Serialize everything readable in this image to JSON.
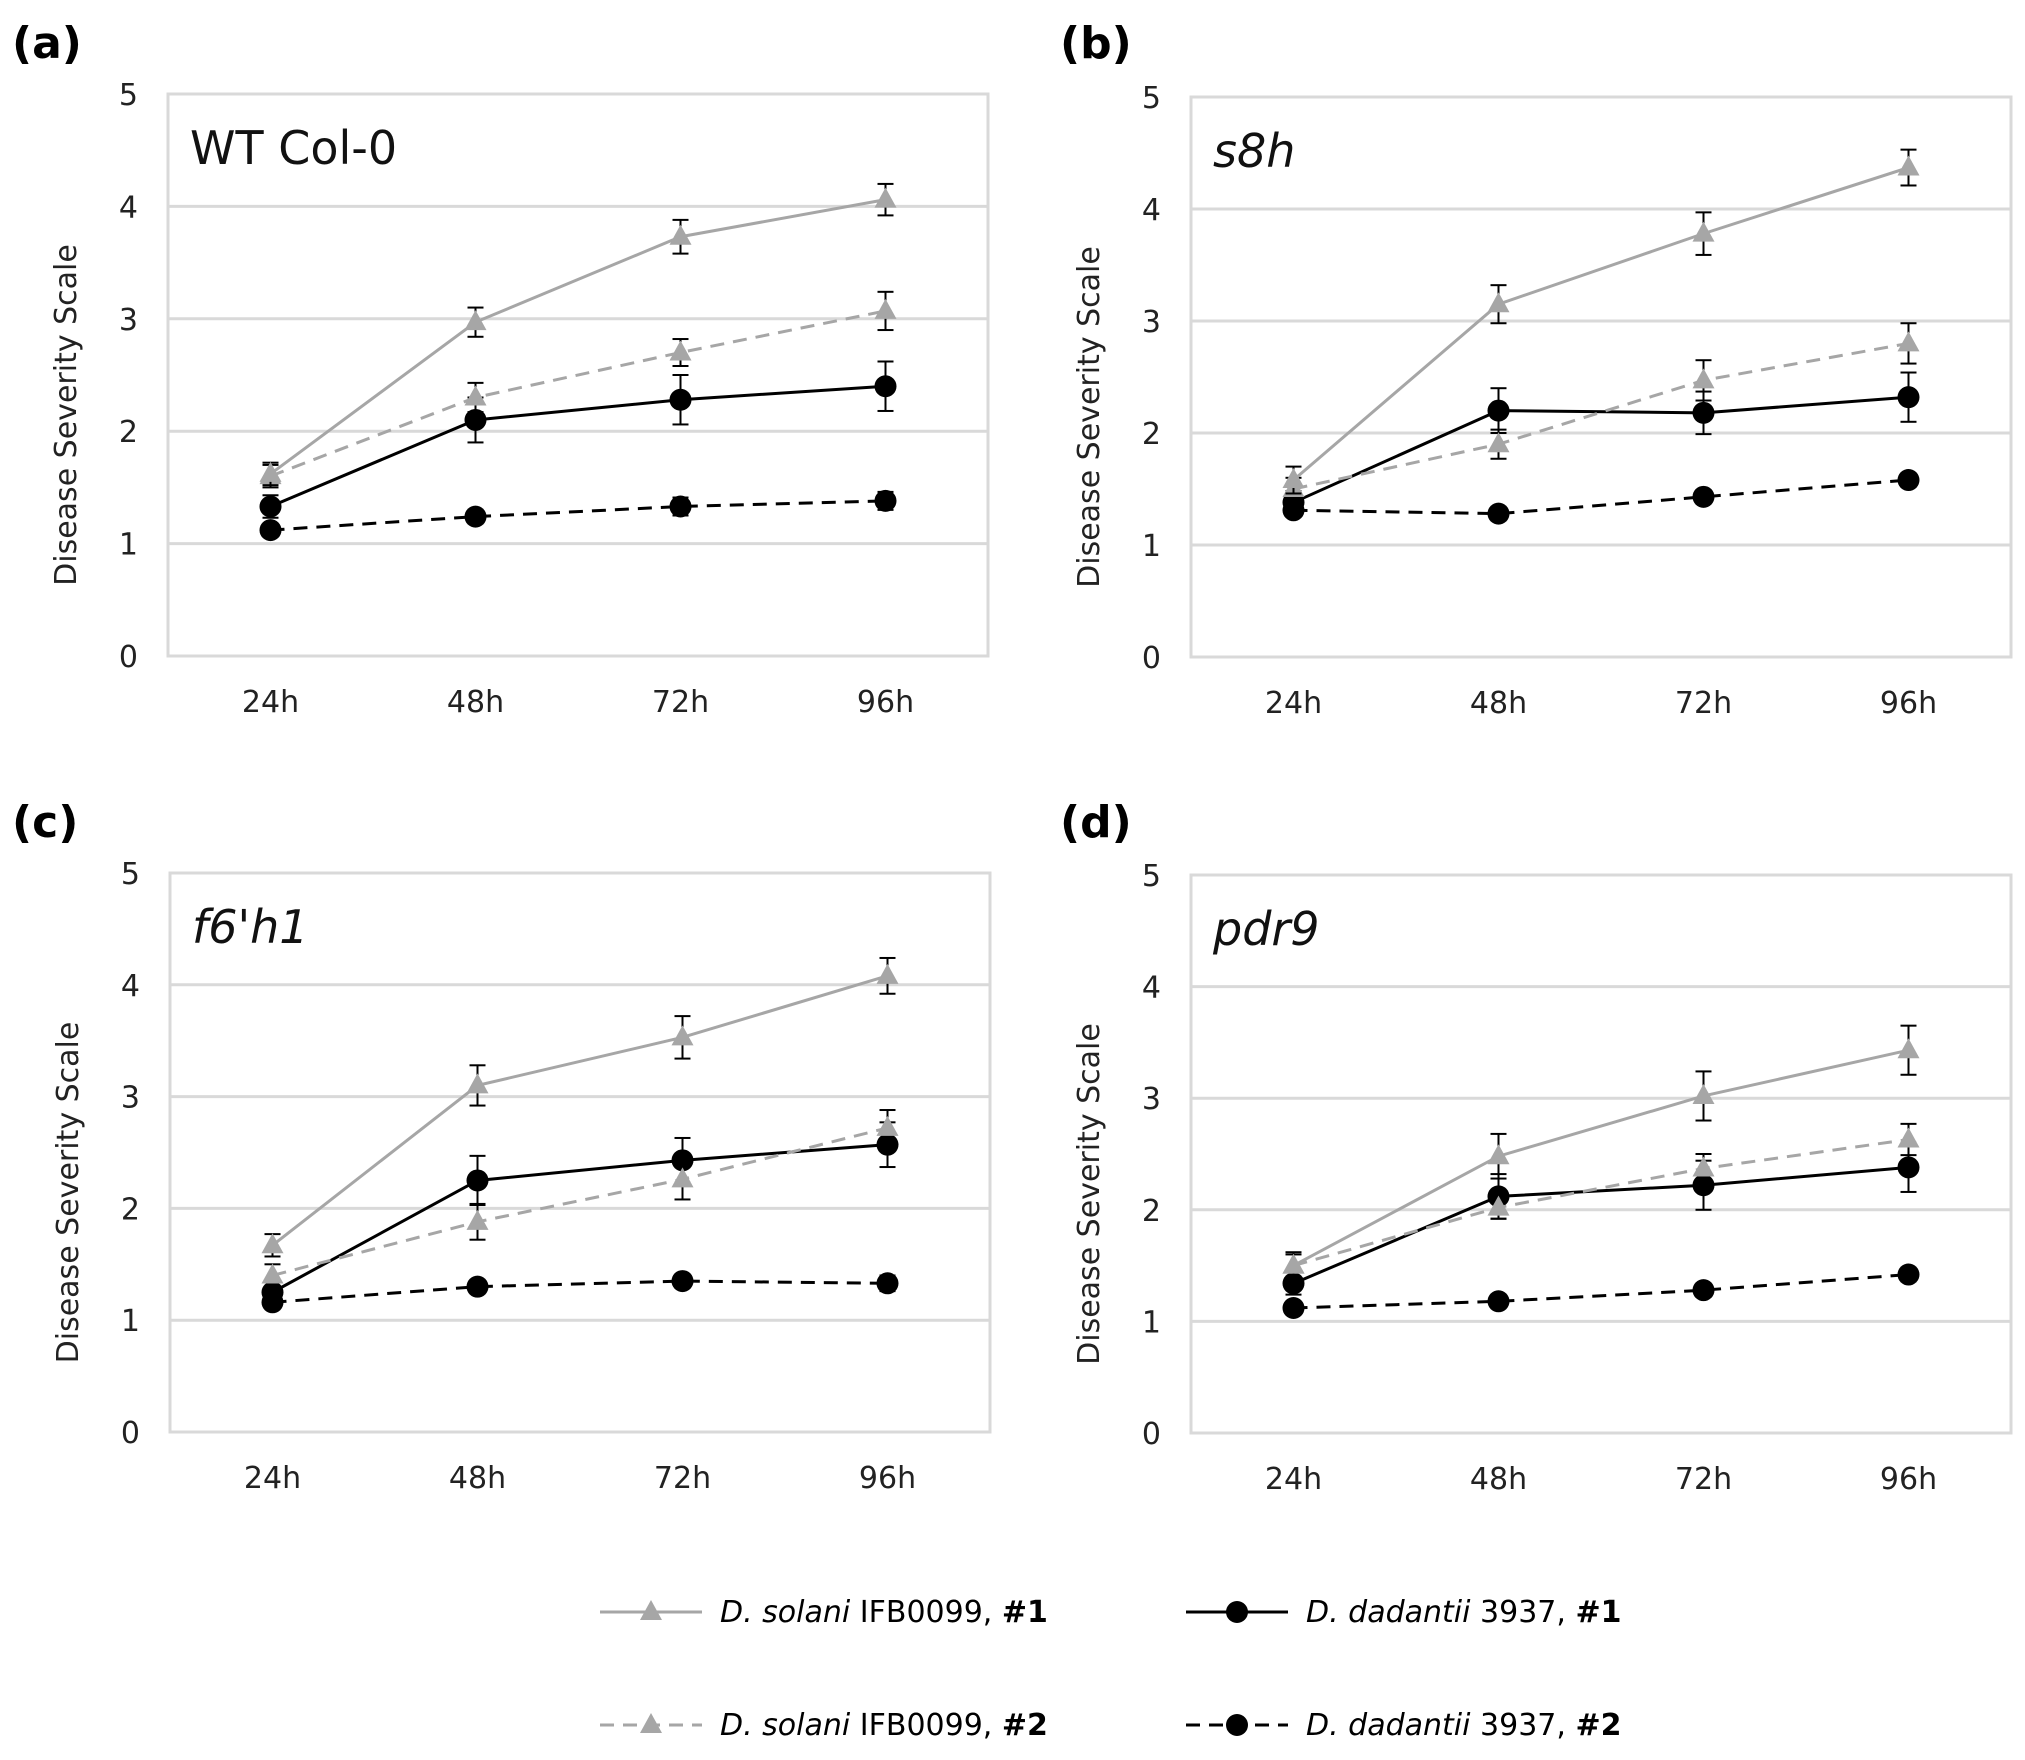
{
  "chart_data": [
    {
      "type": "line",
      "panel_label": "(a)",
      "title": "WT Col-0",
      "title_italic": false,
      "ylabel": "Disease Severity Scale",
      "ylim": [
        0,
        5
      ],
      "yticks": [
        "0",
        "1",
        "2",
        "3",
        "4",
        "5"
      ],
      "categories": [
        "24h",
        "48h",
        "72h",
        "96h"
      ],
      "grid": true,
      "series": [
        {
          "key": "s1",
          "values": [
            1.62,
            2.97,
            3.73,
            4.06
          ],
          "errors": [
            0.1,
            0.13,
            0.15,
            0.14
          ]
        },
        {
          "key": "s2",
          "values": [
            1.6,
            2.3,
            2.7,
            3.07
          ],
          "errors": [
            0.1,
            0.13,
            0.12,
            0.17
          ]
        },
        {
          "key": "d1",
          "values": [
            1.33,
            2.1,
            2.28,
            2.4
          ],
          "errors": [
            0.1,
            0.2,
            0.22,
            0.22
          ]
        },
        {
          "key": "d2",
          "values": [
            1.12,
            1.24,
            1.33,
            1.38
          ],
          "errors": [
            0.05,
            0.06,
            0.08,
            0.08
          ]
        }
      ]
    },
    {
      "type": "line",
      "panel_label": "(b)",
      "title": "s8h",
      "title_italic": true,
      "ylabel": "Disease Severity Scale",
      "ylim": [
        0,
        5
      ],
      "yticks": [
        "0",
        "1",
        "2",
        "3",
        "4",
        "5"
      ],
      "categories": [
        "24h",
        "48h",
        "72h",
        "96h"
      ],
      "grid": true,
      "series": [
        {
          "key": "s1",
          "values": [
            1.58,
            3.15,
            3.78,
            4.37
          ],
          "errors": [
            0.12,
            0.17,
            0.19,
            0.16
          ]
        },
        {
          "key": "s2",
          "values": [
            1.5,
            1.9,
            2.47,
            2.8
          ],
          "errors": [
            0.1,
            0.13,
            0.18,
            0.18
          ]
        },
        {
          "key": "d1",
          "values": [
            1.38,
            2.2,
            2.18,
            2.32
          ],
          "errors": [
            0.1,
            0.2,
            0.19,
            0.22
          ]
        },
        {
          "key": "d2",
          "values": [
            1.31,
            1.28,
            1.43,
            1.58
          ],
          "errors": [
            0.05,
            0.06,
            0.06,
            0.06
          ]
        }
      ]
    },
    {
      "type": "line",
      "panel_label": "(c)",
      "title": "f6'h1",
      "title_italic": true,
      "ylabel": "Disease Severity Scale",
      "ylim": [
        0,
        5
      ],
      "yticks": [
        "0",
        "1",
        "2",
        "3",
        "4",
        "5"
      ],
      "categories": [
        "24h",
        "48h",
        "72h",
        "96h"
      ],
      "grid": true,
      "series": [
        {
          "key": "s1",
          "values": [
            1.67,
            3.1,
            3.53,
            4.08
          ],
          "errors": [
            0.1,
            0.18,
            0.19,
            0.16
          ]
        },
        {
          "key": "s2",
          "values": [
            1.4,
            1.88,
            2.26,
            2.72
          ],
          "errors": [
            0.1,
            0.16,
            0.18,
            0.16
          ]
        },
        {
          "key": "d1",
          "values": [
            1.25,
            2.25,
            2.43,
            2.57
          ],
          "errors": [
            0.1,
            0.22,
            0.2,
            0.2
          ]
        },
        {
          "key": "d2",
          "values": [
            1.16,
            1.3,
            1.35,
            1.33
          ],
          "errors": [
            0.05,
            0.06,
            0.06,
            0.07
          ]
        }
      ]
    },
    {
      "type": "line",
      "panel_label": "(d)",
      "title": "pdr9",
      "title_italic": true,
      "ylabel": "Disease Severity Scale",
      "ylim": [
        0,
        5
      ],
      "yticks": [
        "0",
        "1",
        "2",
        "3",
        "4",
        "5"
      ],
      "categories": [
        "24h",
        "48h",
        "72h",
        "96h"
      ],
      "grid": true,
      "series": [
        {
          "key": "s1",
          "values": [
            1.5,
            2.48,
            3.02,
            3.43
          ],
          "errors": [
            0.12,
            0.2,
            0.22,
            0.22
          ]
        },
        {
          "key": "s2",
          "values": [
            1.5,
            2.02,
            2.37,
            2.63
          ],
          "errors": [
            0.1,
            0.1,
            0.13,
            0.14
          ]
        },
        {
          "key": "d1",
          "values": [
            1.34,
            2.12,
            2.22,
            2.38
          ],
          "errors": [
            0.1,
            0.2,
            0.22,
            0.22
          ]
        },
        {
          "key": "d2",
          "values": [
            1.12,
            1.18,
            1.28,
            1.42
          ],
          "errors": [
            0.05,
            0.06,
            0.06,
            0.06
          ]
        }
      ]
    }
  ],
  "legend": {
    "placement": "bottom",
    "items": [
      {
        "key": "s1",
        "species": "D. solani",
        "strain": " IFB0099, ",
        "rep": "#1",
        "color": "#a6a6a6",
        "dash": false,
        "marker": "triangle"
      },
      {
        "key": "d1",
        "species": "D. dadantii",
        "strain": " 3937, ",
        "rep": "#1",
        "color": "#000000",
        "dash": false,
        "marker": "circle"
      },
      {
        "key": "s2",
        "species": "D. solani",
        "strain": " IFB0099, ",
        "rep": "#2",
        "color": "#a6a6a6",
        "dash": true,
        "marker": "triangle"
      },
      {
        "key": "d2",
        "species": "D. dadantii",
        "strain": " 3937, ",
        "rep": "#2",
        "color": "#000000",
        "dash": true,
        "marker": "circle"
      }
    ]
  }
}
